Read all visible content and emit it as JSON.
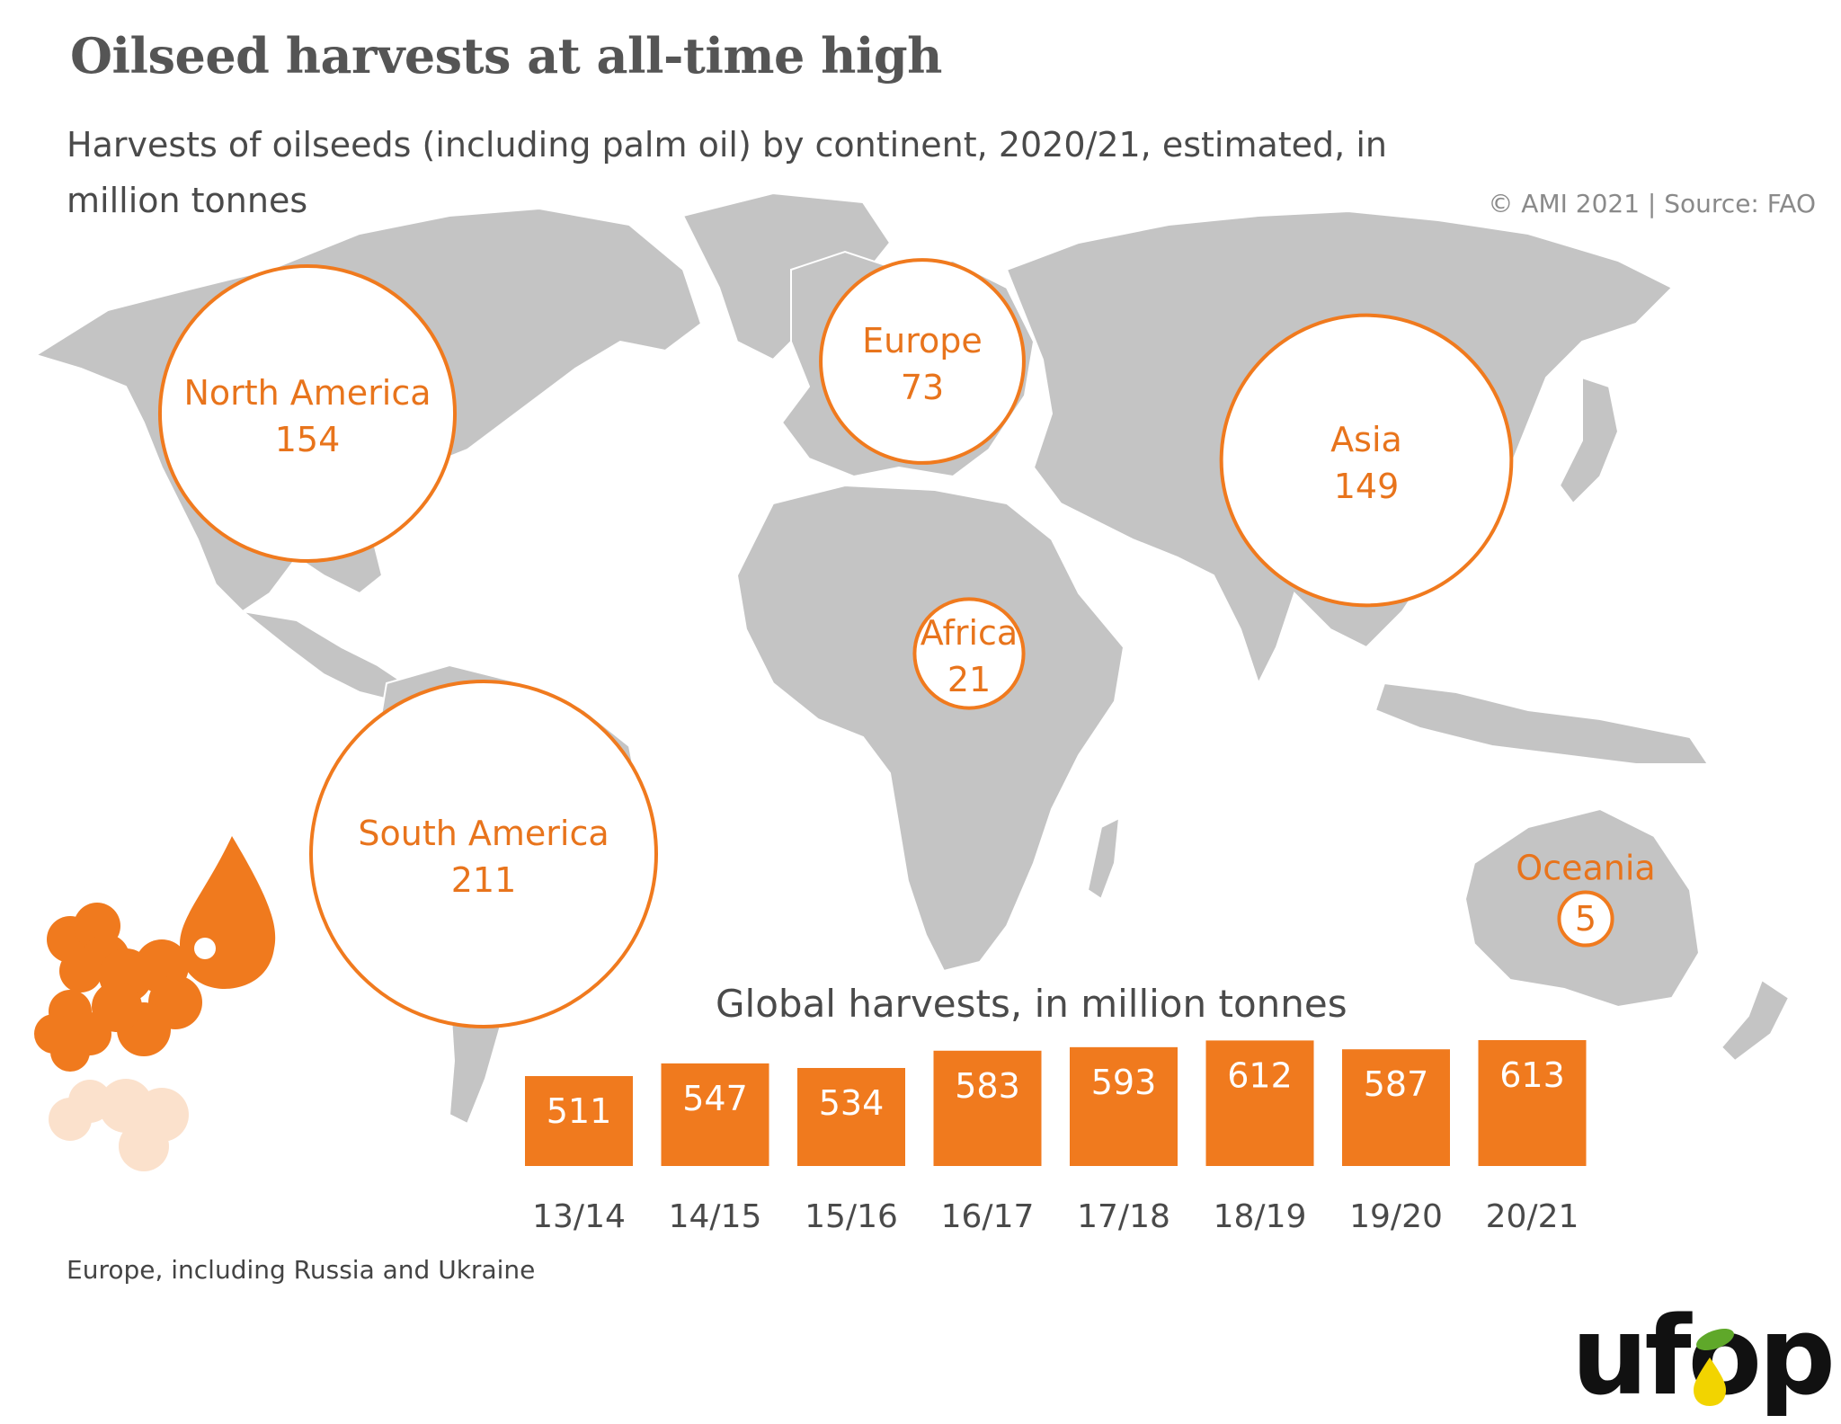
{
  "header": {
    "title": "Oilseed harvests at all-time high",
    "subtitle": "Harvests of oilseeds (including palm oil) by continent, 2020/21, estimated, in million tonnes",
    "credit": "© AMI 2021 | Source: FAO"
  },
  "footnote": "Europe, including Russia and Ukraine",
  "logo": {
    "text": "ufop",
    "leaf_color": "#5fa82a",
    "drop_color": "#f2d400"
  },
  "colors": {
    "accent": "#f07a1e",
    "map": "#c4c4c4",
    "bubble_fill": "#ffffff"
  },
  "chart_data": [
    {
      "type": "bubble-map",
      "units": "million tonnes",
      "regions": [
        {
          "name": "North America",
          "value": 154
        },
        {
          "name": "Europe",
          "value": 73
        },
        {
          "name": "Asia",
          "value": 149
        },
        {
          "name": "Africa",
          "value": 21
        },
        {
          "name": "South America",
          "value": 211
        },
        {
          "name": "Oceania",
          "value": 5
        }
      ]
    },
    {
      "type": "bar",
      "title": "Global harvests, in million tonnes",
      "categories": [
        "13/14",
        "14/15",
        "15/16",
        "16/17",
        "17/18",
        "18/19",
        "19/20",
        "20/21"
      ],
      "values": [
        511,
        547,
        534,
        583,
        593,
        612,
        587,
        613
      ]
    }
  ]
}
